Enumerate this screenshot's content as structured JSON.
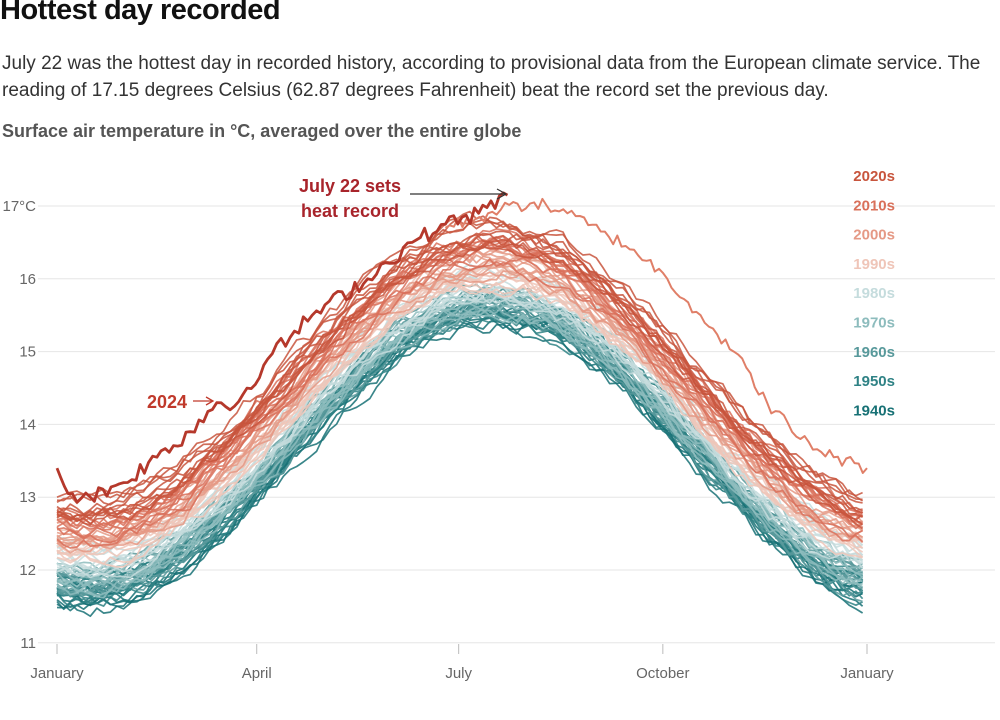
{
  "header": {
    "title": "Hottest day recorded",
    "subtitle": "July 22 was the hottest day in recorded history, according to provisional data from the European climate service. The reading of 17.15 degrees Celsius (62.87 degrees Fahrenheit) beat the record set the previous day.",
    "chart_heading": "Surface air temperature in °C, averaged over the entire globe"
  },
  "chart_data": {
    "type": "line",
    "title": "Surface air temperature in °C, averaged over the entire globe",
    "xlabel": "",
    "ylabel": "",
    "x_ticks": [
      "January",
      "April",
      "July",
      "October",
      "January"
    ],
    "x_tick_positions_day": [
      0,
      90,
      181,
      273,
      365
    ],
    "y_ticks": [
      "17°C",
      "16",
      "15",
      "14",
      "13",
      "12",
      "11"
    ],
    "ylim": [
      11,
      17.6
    ],
    "xlim_day": [
      0,
      365
    ],
    "grid": "horizontal",
    "legend_position": "right",
    "series": [
      {
        "name": "2020s",
        "color": "#c8553d",
        "baseline_jan": 12.8,
        "baseline_peak": 16.6
      },
      {
        "name": "2010s",
        "color": "#d9705a",
        "baseline_jan": 12.6,
        "baseline_peak": 16.4
      },
      {
        "name": "2000s",
        "color": "#e59985",
        "baseline_jan": 12.4,
        "baseline_peak": 16.2
      },
      {
        "name": "1990s",
        "color": "#efc5b8",
        "baseline_jan": 12.3,
        "baseline_peak": 16.05
      },
      {
        "name": "1980s",
        "color": "#c5dcdd",
        "baseline_jan": 12.15,
        "baseline_peak": 15.9
      },
      {
        "name": "1970s",
        "color": "#8dbcbd",
        "baseline_jan": 11.95,
        "baseline_peak": 15.75
      },
      {
        "name": "1960s",
        "color": "#58999b",
        "baseline_jan": 11.8,
        "baseline_peak": 15.65
      },
      {
        "name": "1950s",
        "color": "#2f8285",
        "baseline_jan": 11.72,
        "baseline_peak": 15.6
      },
      {
        "name": "1940s",
        "color": "#177175",
        "baseline_jan": 11.65,
        "baseline_peak": 15.55
      }
    ],
    "highlight": {
      "name": "2024",
      "color": "#b5382b",
      "points": [
        [
          0,
          13.4
        ],
        [
          5,
          13.05
        ],
        [
          15,
          13.0
        ],
        [
          30,
          13.2
        ],
        [
          45,
          13.55
        ],
        [
          60,
          13.9
        ],
        [
          72,
          14.3
        ],
        [
          80,
          14.25
        ],
        [
          95,
          14.9
        ],
        [
          115,
          15.5
        ],
        [
          140,
          16.0
        ],
        [
          160,
          16.5
        ],
        [
          175,
          16.75
        ],
        [
          190,
          16.9
        ],
        [
          203,
          17.15
        ]
      ]
    },
    "record_2023": {
      "color": "#e07f68",
      "points": [
        [
          175,
          16.7
        ],
        [
          200,
          16.95
        ],
        [
          215,
          17.05
        ],
        [
          230,
          16.9
        ],
        [
          245,
          16.65
        ],
        [
          260,
          16.4
        ],
        [
          275,
          16.0
        ],
        [
          290,
          15.5
        ],
        [
          305,
          15.0
        ],
        [
          320,
          14.3
        ],
        [
          335,
          13.8
        ],
        [
          350,
          13.55
        ],
        [
          365,
          13.4
        ]
      ]
    },
    "annotations": [
      {
        "text_lines": [
          "July 22 sets",
          "heat record"
        ],
        "color": "#a8242b"
      },
      {
        "text": "2024",
        "color": "#c0392b"
      }
    ]
  }
}
